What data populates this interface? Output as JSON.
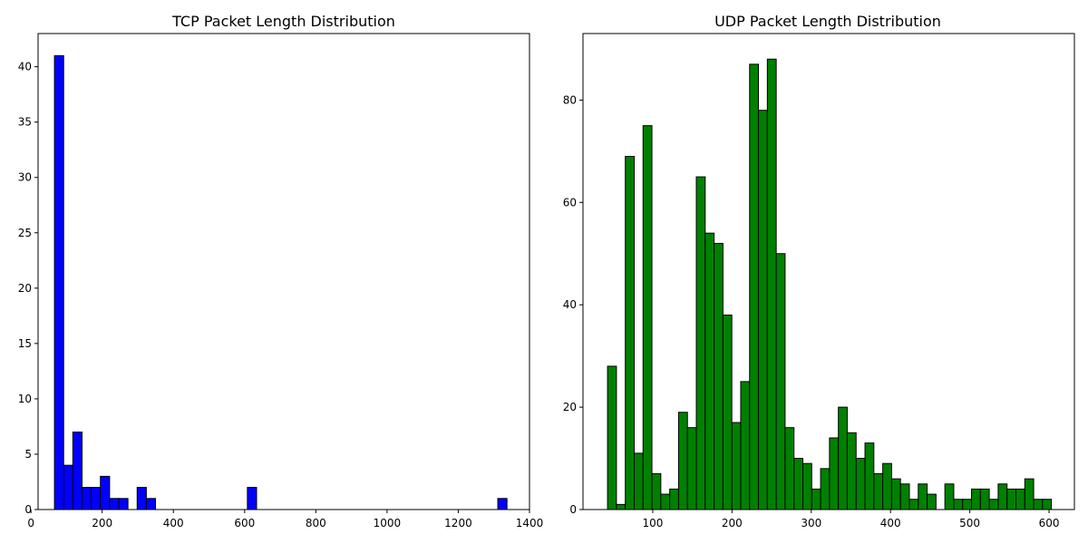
{
  "chart_data": [
    {
      "type": "bar",
      "title": "TCP Packet Length Distribution",
      "xlabel": "",
      "ylabel": "",
      "color": "#0000ff",
      "edge_color": "#000000",
      "xlim": [
        20,
        1400
      ],
      "ylim": [
        0,
        43
      ],
      "xticks": [
        0,
        200,
        400,
        600,
        800,
        1000,
        1200,
        1400
      ],
      "yticks": [
        0,
        5,
        10,
        15,
        20,
        25,
        30,
        35,
        40
      ],
      "bin_width": 25.8,
      "bins": [
        {
          "x": 66,
          "count": 41
        },
        {
          "x": 91.8,
          "count": 4
        },
        {
          "x": 117.6,
          "count": 7
        },
        {
          "x": 143.4,
          "count": 2
        },
        {
          "x": 169.2,
          "count": 2
        },
        {
          "x": 195,
          "count": 3
        },
        {
          "x": 220.8,
          "count": 1
        },
        {
          "x": 246.6,
          "count": 1
        },
        {
          "x": 298.2,
          "count": 2
        },
        {
          "x": 324,
          "count": 1
        },
        {
          "x": 607.8,
          "count": 2
        },
        {
          "x": 1311,
          "count": 1
        }
      ],
      "range_end": 1337
    },
    {
      "type": "bar",
      "title": "UDP Packet Length Distribution",
      "xlabel": "",
      "ylabel": "",
      "color": "#008000",
      "edge_color": "#000000",
      "xlim": [
        12,
        632
      ],
      "ylim": [
        0,
        93
      ],
      "xticks": [
        100,
        200,
        300,
        400,
        500,
        600
      ],
      "yticks": [
        0,
        20,
        40,
        60,
        80
      ],
      "bin_start": 43,
      "bin_width": 11.2,
      "counts": [
        28,
        1,
        69,
        11,
        75,
        7,
        3,
        4,
        19,
        16,
        65,
        54,
        52,
        38,
        17,
        25,
        87,
        78,
        88,
        50,
        16,
        10,
        9,
        4,
        8,
        14,
        20,
        15,
        10,
        13,
        7,
        9,
        6,
        5,
        2,
        5,
        3,
        0,
        5,
        2,
        2,
        4,
        4,
        2,
        5,
        4,
        4,
        6,
        2,
        2
      ]
    }
  ]
}
